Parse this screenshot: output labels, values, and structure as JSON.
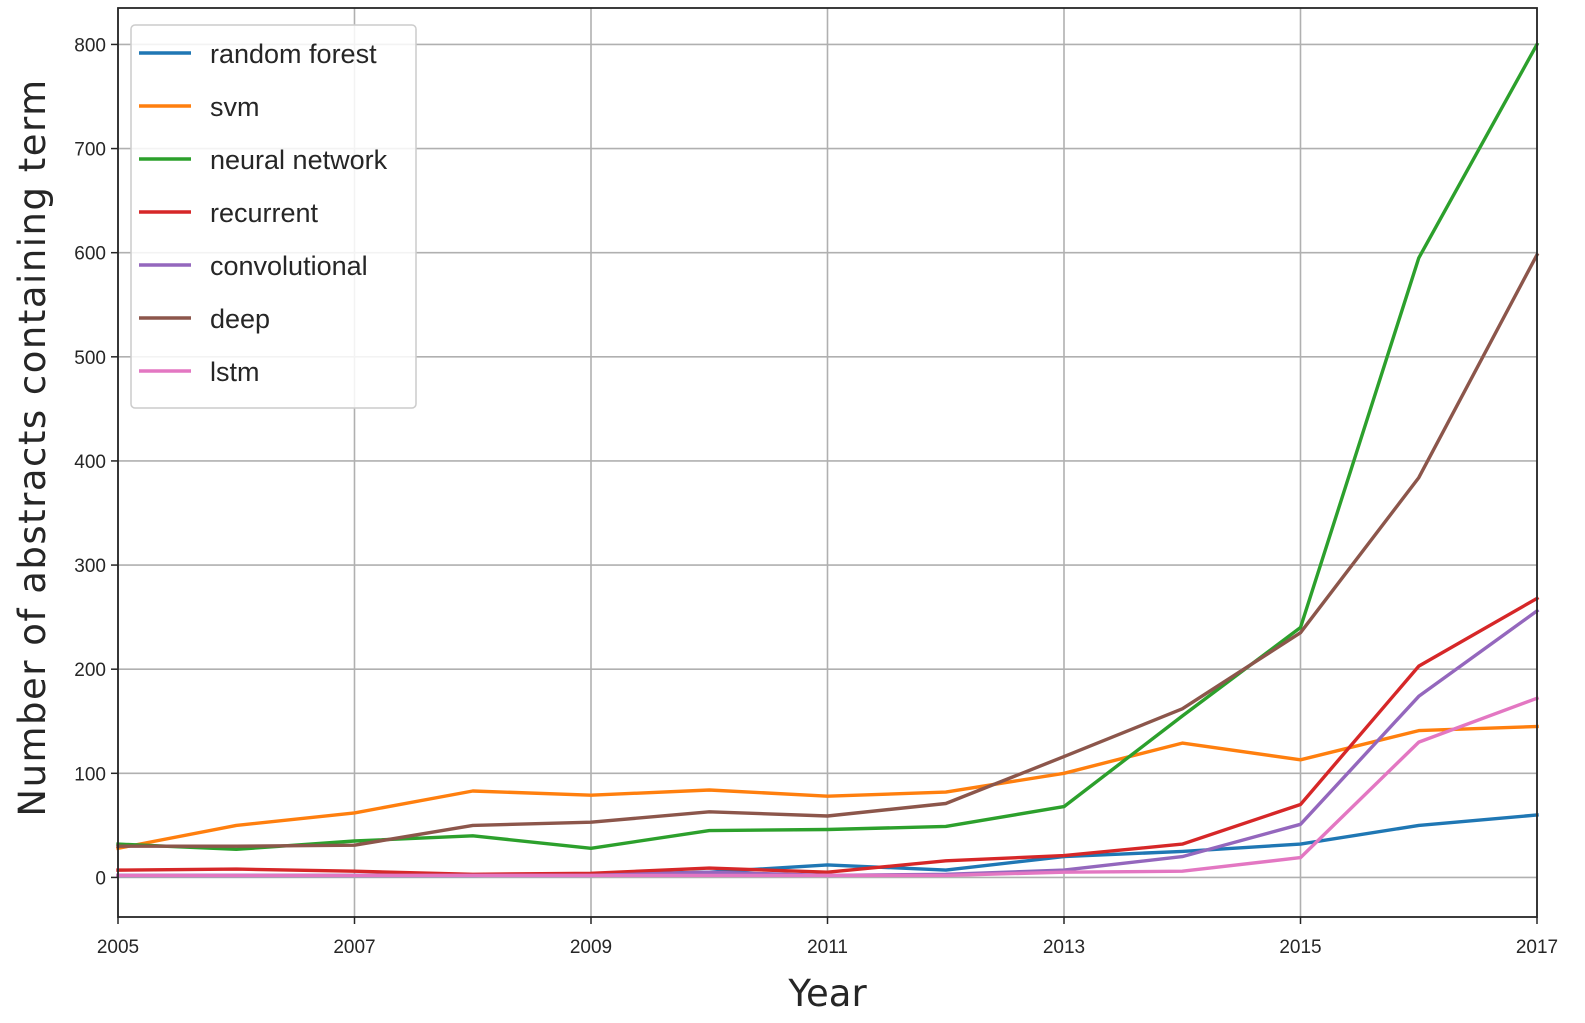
{
  "chart_data": {
    "type": "line",
    "title": "",
    "xlabel": "Year",
    "ylabel": "Number of abstracts containing term",
    "xlim": [
      2005,
      2017
    ],
    "ylim": [
      -38,
      835
    ],
    "x_ticks": [
      2005,
      2007,
      2009,
      2011,
      2013,
      2015,
      2017
    ],
    "y_ticks": [
      0,
      100,
      200,
      300,
      400,
      500,
      600,
      700,
      800
    ],
    "grid": true,
    "legend_position": "upper-left",
    "x": [
      2005,
      2006,
      2007,
      2008,
      2009,
      2010,
      2011,
      2012,
      2013,
      2014,
      2015,
      2016,
      2017
    ],
    "series": [
      {
        "name": "random forest",
        "color": "#1f77b4",
        "values": [
          2,
          2,
          2,
          2,
          3,
          5,
          12,
          7,
          20,
          25,
          32,
          50,
          60
        ]
      },
      {
        "name": "svm",
        "color": "#ff7f0e",
        "values": [
          28,
          50,
          62,
          83,
          79,
          84,
          78,
          82,
          100,
          129,
          113,
          141,
          145
        ]
      },
      {
        "name": "neural network",
        "color": "#2ca02c",
        "values": [
          32,
          27,
          35,
          40,
          28,
          45,
          46,
          49,
          68,
          155,
          240,
          595,
          800
        ]
      },
      {
        "name": "recurrent",
        "color": "#d62728",
        "values": [
          7,
          8,
          6,
          3,
          4,
          9,
          5,
          16,
          21,
          32,
          70,
          203,
          268
        ]
      },
      {
        "name": "convolutional",
        "color": "#9467bd",
        "values": [
          2,
          2,
          2,
          2,
          2,
          5,
          2,
          3,
          7,
          20,
          51,
          174,
          256
        ]
      },
      {
        "name": "deep",
        "color": "#8c564b",
        "values": [
          30,
          30,
          31,
          50,
          53,
          63,
          59,
          71,
          116,
          162,
          235,
          384,
          598
        ]
      },
      {
        "name": "lstm",
        "color": "#e377c2",
        "values": [
          2,
          2,
          2,
          2,
          2,
          2,
          2,
          2,
          5,
          6,
          19,
          130,
          172
        ]
      }
    ]
  }
}
